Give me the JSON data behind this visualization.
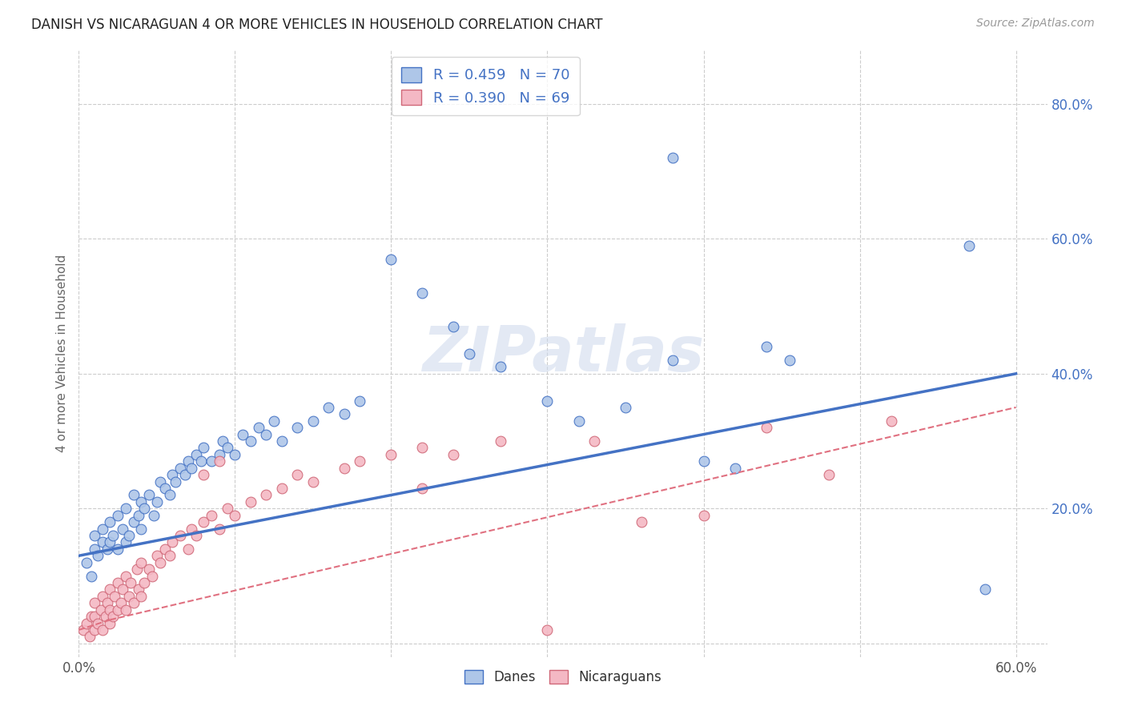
{
  "title": "DANISH VS NICARAGUAN 4 OR MORE VEHICLES IN HOUSEHOLD CORRELATION CHART",
  "source": "Source: ZipAtlas.com",
  "ylabel": "4 or more Vehicles in Household",
  "xlim": [
    0.0,
    0.62
  ],
  "ylim": [
    -0.02,
    0.88
  ],
  "legend_r_danish": "R = 0.459",
  "legend_n_danish": "N = 70",
  "legend_r_nicaraguan": "R = 0.390",
  "legend_n_nicaraguan": "N = 69",
  "color_danish": "#aec6e8",
  "color_nicaraguan": "#f4b8c4",
  "color_line_danish": "#4472c4",
  "color_line_nicaraguan": "#e07080",
  "watermark": "ZIPatlas",
  "danes_x": [
    0.005,
    0.008,
    0.01,
    0.01,
    0.012,
    0.015,
    0.015,
    0.018,
    0.02,
    0.02,
    0.022,
    0.025,
    0.025,
    0.028,
    0.03,
    0.03,
    0.032,
    0.035,
    0.035,
    0.038,
    0.04,
    0.04,
    0.042,
    0.045,
    0.048,
    0.05,
    0.052,
    0.055,
    0.058,
    0.06,
    0.062,
    0.065,
    0.068,
    0.07,
    0.072,
    0.075,
    0.078,
    0.08,
    0.085,
    0.09,
    0.092,
    0.095,
    0.1,
    0.105,
    0.11,
    0.115,
    0.12,
    0.125,
    0.13,
    0.14,
    0.15,
    0.16,
    0.17,
    0.18,
    0.2,
    0.22,
    0.24,
    0.25,
    0.27,
    0.3,
    0.32,
    0.35,
    0.38,
    0.4,
    0.42,
    0.44,
    0.455,
    0.57,
    0.58,
    0.38
  ],
  "danes_y": [
    0.12,
    0.1,
    0.14,
    0.16,
    0.13,
    0.15,
    0.17,
    0.14,
    0.15,
    0.18,
    0.16,
    0.14,
    0.19,
    0.17,
    0.15,
    0.2,
    0.16,
    0.18,
    0.22,
    0.19,
    0.17,
    0.21,
    0.2,
    0.22,
    0.19,
    0.21,
    0.24,
    0.23,
    0.22,
    0.25,
    0.24,
    0.26,
    0.25,
    0.27,
    0.26,
    0.28,
    0.27,
    0.29,
    0.27,
    0.28,
    0.3,
    0.29,
    0.28,
    0.31,
    0.3,
    0.32,
    0.31,
    0.33,
    0.3,
    0.32,
    0.33,
    0.35,
    0.34,
    0.36,
    0.57,
    0.52,
    0.47,
    0.43,
    0.41,
    0.36,
    0.33,
    0.35,
    0.42,
    0.27,
    0.26,
    0.44,
    0.42,
    0.59,
    0.08,
    0.72
  ],
  "nicaraguans_x": [
    0.003,
    0.005,
    0.007,
    0.008,
    0.01,
    0.01,
    0.01,
    0.012,
    0.014,
    0.015,
    0.015,
    0.017,
    0.018,
    0.02,
    0.02,
    0.02,
    0.022,
    0.023,
    0.025,
    0.025,
    0.027,
    0.028,
    0.03,
    0.03,
    0.032,
    0.033,
    0.035,
    0.037,
    0.038,
    0.04,
    0.04,
    0.042,
    0.045,
    0.047,
    0.05,
    0.052,
    0.055,
    0.058,
    0.06,
    0.065,
    0.07,
    0.072,
    0.075,
    0.08,
    0.085,
    0.09,
    0.095,
    0.1,
    0.11,
    0.12,
    0.13,
    0.14,
    0.15,
    0.17,
    0.18,
    0.2,
    0.22,
    0.24,
    0.27,
    0.3,
    0.33,
    0.36,
    0.4,
    0.44,
    0.48,
    0.52,
    0.22,
    0.08,
    0.09
  ],
  "nicaraguans_y": [
    0.02,
    0.03,
    0.01,
    0.04,
    0.02,
    0.04,
    0.06,
    0.03,
    0.05,
    0.02,
    0.07,
    0.04,
    0.06,
    0.03,
    0.05,
    0.08,
    0.04,
    0.07,
    0.05,
    0.09,
    0.06,
    0.08,
    0.05,
    0.1,
    0.07,
    0.09,
    0.06,
    0.11,
    0.08,
    0.07,
    0.12,
    0.09,
    0.11,
    0.1,
    0.13,
    0.12,
    0.14,
    0.13,
    0.15,
    0.16,
    0.14,
    0.17,
    0.16,
    0.18,
    0.19,
    0.17,
    0.2,
    0.19,
    0.21,
    0.22,
    0.23,
    0.25,
    0.24,
    0.26,
    0.27,
    0.28,
    0.29,
    0.28,
    0.3,
    0.02,
    0.3,
    0.18,
    0.19,
    0.32,
    0.25,
    0.33,
    0.23,
    0.25,
    0.27
  ],
  "xtick_positions": [
    0.0,
    0.1,
    0.2,
    0.3,
    0.4,
    0.5,
    0.6
  ],
  "ytick_positions": [
    0.0,
    0.2,
    0.4,
    0.6,
    0.8
  ],
  "ytick_labels": [
    "",
    "20.0%",
    "40.0%",
    "60.0%",
    "80.0%"
  ]
}
